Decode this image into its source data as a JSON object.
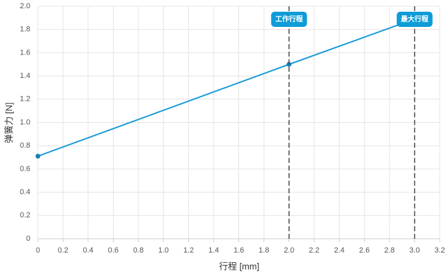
{
  "chart_data": {
    "type": "line",
    "xlabel": "行程 [mm]",
    "ylabel": "弹簧力 [N]",
    "series": [
      {
        "color": "#1a9bd7",
        "x": [
          0,
          2,
          3
        ],
        "values": [
          0.71,
          1.5,
          1.89
        ]
      }
    ],
    "annotations": [
      {
        "x": 2,
        "label": "工作行程"
      },
      {
        "x": 3,
        "label": "最大行程"
      }
    ],
    "xlim": [
      0,
      3.2
    ],
    "xticks": [
      0,
      0.2,
      0.4,
      0.6,
      0.8,
      {
        "value": 1,
        "label": "1.0"
      },
      1.2,
      1.4,
      1.6,
      1.8,
      {
        "value": 2,
        "label": "2.0"
      },
      2.2,
      2.4,
      2.6,
      2.8,
      {
        "value": 3,
        "label": "3.0"
      },
      3.2
    ],
    "ylim": [
      0,
      2
    ],
    "yticks": [
      0,
      0.2,
      0.4,
      0.6,
      0.8,
      {
        "value": 1,
        "label": "1.0"
      },
      1.2,
      1.4,
      1.6,
      1.8,
      {
        "value": 2,
        "label": "2.0"
      }
    ],
    "grid": true
  }
}
